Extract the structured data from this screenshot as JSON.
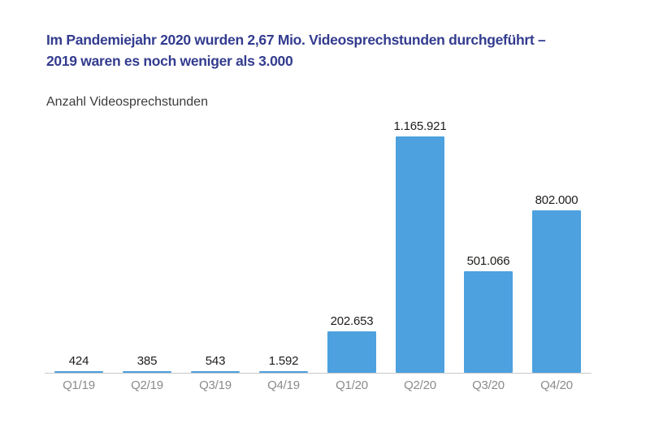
{
  "header": {
    "title_line1": "Im Pandemiejahr 2020 wurden 2,67 Mio. Videosprechstunden durchgeführt –",
    "title_line2": "2019 waren es noch weniger als 3.000",
    "axis_title": "Anzahl Videosprechstunden"
  },
  "colors": {
    "background": "#ffffff",
    "title": "#333c8f",
    "axis_title": "#3c3c3b",
    "bar": "#4da1de",
    "value_label": "#1d1d1b",
    "tick_label": "#8b8b8b",
    "axis_line": "#c9c9c9"
  },
  "chart_data": {
    "type": "bar",
    "title": "Im Pandemiejahr 2020 wurden 2,67 Mio. Videosprechstunden durchgeführt – 2019 waren es noch weniger als 3.000",
    "ylabel": "Anzahl Videosprechstunden",
    "xlabel": "",
    "categories": [
      "Q1/19",
      "Q2/19",
      "Q3/19",
      "Q4/19",
      "Q1/20",
      "Q2/20",
      "Q3/20",
      "Q4/20"
    ],
    "values": [
      424,
      385,
      543,
      1592,
      202653,
      1165921,
      501066,
      802000
    ],
    "value_labels": [
      "424",
      "385",
      "543",
      "1.592",
      "202.653",
      "1.165.921",
      "501.066",
      "802.000"
    ],
    "ylim": [
      0,
      1165921
    ],
    "grid": false,
    "legend": "none",
    "bar_color": "#4da1de"
  }
}
